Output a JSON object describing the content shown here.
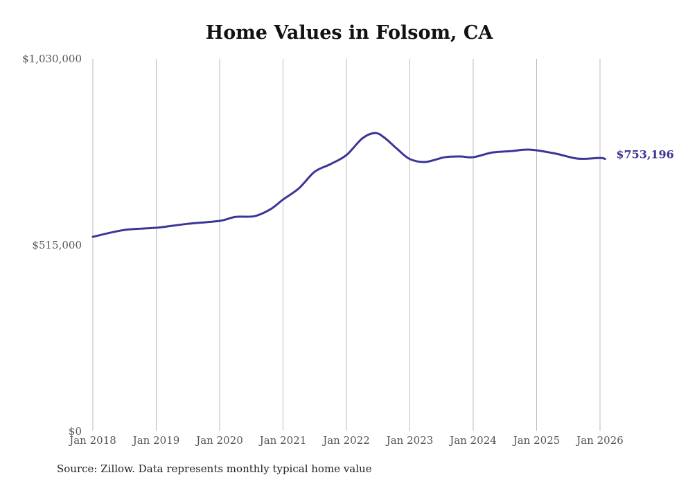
{
  "chart_data": {
    "type": "line",
    "title": "Home Values in Folsom, CA",
    "source": "Source: Zillow. Data represents monthly typical home value",
    "xlabel": "",
    "ylabel": "",
    "ylim": [
      0,
      1030000
    ],
    "y_ticks": [
      {
        "value": 0,
        "label": "$0"
      },
      {
        "value": 515000,
        "label": "$515,000"
      },
      {
        "value": 1030000,
        "label": "$1,030,000"
      }
    ],
    "x_ticks": [
      {
        "value": 2018,
        "label": "Jan 2018"
      },
      {
        "value": 2019,
        "label": "Jan 2019"
      },
      {
        "value": 2020,
        "label": "Jan 2020"
      },
      {
        "value": 2021,
        "label": "Jan 2021"
      },
      {
        "value": 2022,
        "label": "Jan 2022"
      },
      {
        "value": 2023,
        "label": "Jan 2023"
      },
      {
        "value": 2024,
        "label": "Jan 2024"
      },
      {
        "value": 2025,
        "label": "Jan 2025"
      },
      {
        "value": 2026,
        "label": "Jan 2026"
      }
    ],
    "grid": "vertical",
    "series": [
      {
        "name": "Typical home value",
        "color": "#3a3596",
        "x": [
          2018.0,
          2018.5,
          2019.0,
          2019.5,
          2020.0,
          2020.25,
          2020.55,
          2020.8,
          2021.0,
          2021.25,
          2021.5,
          2021.75,
          2022.0,
          2022.25,
          2022.45,
          2022.6,
          2022.8,
          2023.0,
          2023.25,
          2023.55,
          2023.8,
          2024.0,
          2024.3,
          2024.6,
          2024.9,
          2025.3,
          2025.65,
          2026.0,
          2026.08
        ],
        "values": [
          538000,
          557000,
          563000,
          574000,
          582000,
          593000,
          595000,
          614000,
          641000,
          672000,
          718000,
          739000,
          764000,
          810000,
          825000,
          812000,
          781000,
          753000,
          745000,
          758000,
          760000,
          758000,
          771000,
          775000,
          779000,
          768000,
          754000,
          756000,
          753196
        ]
      }
    ],
    "end_label": "$753,196"
  }
}
